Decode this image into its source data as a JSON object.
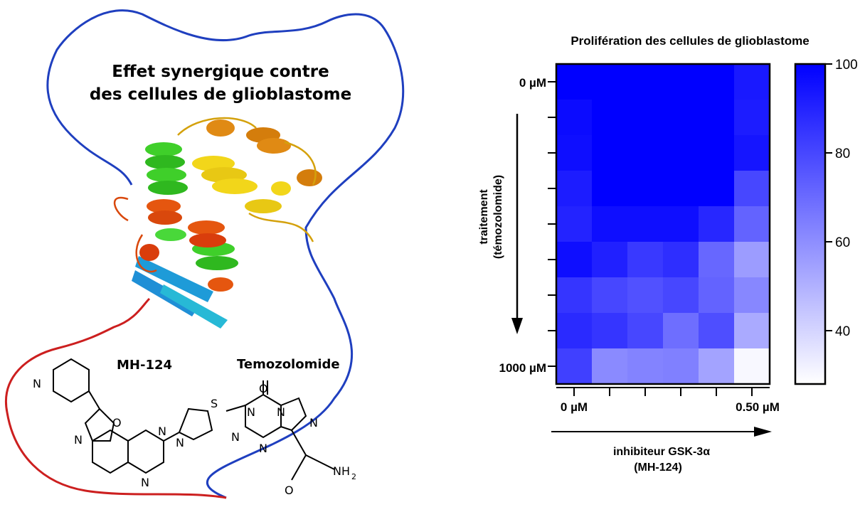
{
  "left_panel": {
    "title_line1": "Effet synergique contre",
    "title_line2": "des cellules de glioblastome",
    "molecule1": "MH-124",
    "molecule2": "Temozolomide",
    "atoms": {
      "n": "N",
      "o": "O",
      "s": "S",
      "nh2": "NH",
      "sub2": "2"
    }
  },
  "chart_data": {
    "type": "heatmap",
    "title": "Prolifération des cellules de glioblastome",
    "rows": 9,
    "cols": 6,
    "y_tick_labels": {
      "top": "0 µM",
      "bottom": "1000 µM"
    },
    "x_tick_labels": {
      "left": "0 µM",
      "right": "0.50 µM"
    },
    "ylabel_line1": "traitement",
    "ylabel_line2": "(témozolomide)",
    "xlabel_line1": "inhibiteur GSK-3",
    "xlabel_alpha": "α",
    "xlabel_line2": "(MH-124)",
    "colorbar": {
      "min": 28,
      "max": 100,
      "ticks": [
        100,
        80,
        60,
        40
      ],
      "low_color": "#ffffff",
      "high_color": "#0000ff"
    },
    "values": [
      [
        100,
        100,
        100,
        100,
        100,
        93
      ],
      [
        97,
        100,
        100,
        100,
        100,
        92
      ],
      [
        96,
        100,
        100,
        100,
        100,
        94
      ],
      [
        92,
        100,
        100,
        100,
        100,
        80
      ],
      [
        90,
        96,
        96,
        96,
        89,
        72
      ],
      [
        96,
        91,
        84,
        87,
        71,
        56
      ],
      [
        85,
        80,
        77,
        80,
        72,
        62
      ],
      [
        88,
        85,
        80,
        69,
        78,
        52
      ],
      [
        82,
        61,
        63,
        64,
        54,
        30
      ]
    ]
  }
}
